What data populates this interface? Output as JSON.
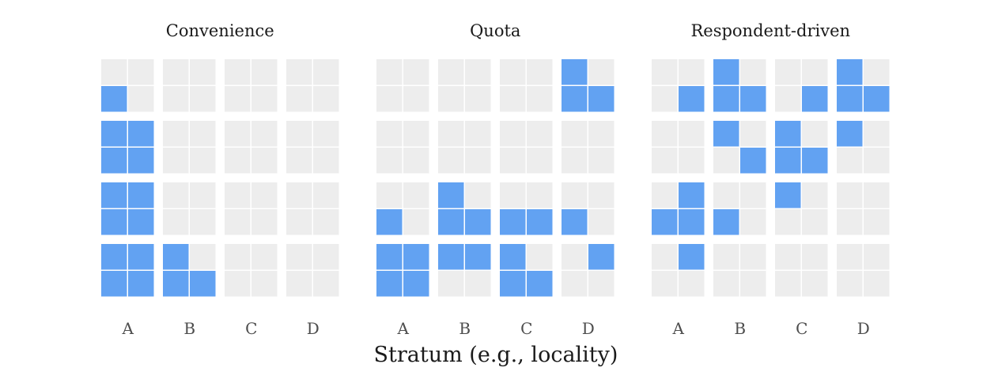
{
  "chart_data": {
    "type": "heatmap",
    "xlabel": "Stratum (e.g., locality)",
    "ylabel": "",
    "colors": {
      "sampled": "#62a2f2",
      "not_sampled": "#ededed"
    },
    "panels": [
      {
        "title": "Convenience",
        "strata": [
          "A",
          "B",
          "C",
          "D"
        ],
        "grid": [
          [
            0,
            0,
            0,
            0,
            0,
            0,
            0,
            0
          ],
          [
            1,
            0,
            0,
            0,
            0,
            0,
            0,
            0
          ],
          [
            1,
            1,
            0,
            0,
            0,
            0,
            0,
            0
          ],
          [
            1,
            1,
            0,
            0,
            0,
            0,
            0,
            0
          ],
          [
            1,
            1,
            0,
            0,
            0,
            0,
            0,
            0
          ],
          [
            1,
            1,
            0,
            0,
            0,
            0,
            0,
            0
          ],
          [
            1,
            1,
            1,
            0,
            0,
            0,
            0,
            0
          ],
          [
            1,
            1,
            1,
            1,
            0,
            0,
            0,
            0
          ]
        ]
      },
      {
        "title": "Quota",
        "strata": [
          "A",
          "B",
          "C",
          "D"
        ],
        "grid": [
          [
            0,
            0,
            0,
            0,
            0,
            0,
            1,
            0
          ],
          [
            0,
            0,
            0,
            0,
            0,
            0,
            1,
            1
          ],
          [
            0,
            0,
            0,
            0,
            0,
            0,
            0,
            0
          ],
          [
            0,
            0,
            0,
            0,
            0,
            0,
            0,
            0
          ],
          [
            0,
            0,
            1,
            0,
            0,
            0,
            0,
            0
          ],
          [
            1,
            0,
            1,
            1,
            1,
            1,
            1,
            0
          ],
          [
            1,
            1,
            1,
            1,
            1,
            0,
            0,
            1
          ],
          [
            1,
            1,
            0,
            0,
            1,
            1,
            0,
            0
          ]
        ]
      },
      {
        "title": "Respondent-driven",
        "strata": [
          "A",
          "B",
          "C",
          "D"
        ],
        "grid": [
          [
            0,
            0,
            1,
            0,
            0,
            0,
            1,
            0
          ],
          [
            0,
            1,
            1,
            1,
            0,
            1,
            1,
            1
          ],
          [
            0,
            0,
            1,
            0,
            1,
            0,
            1,
            0
          ],
          [
            0,
            0,
            0,
            1,
            1,
            1,
            0,
            0
          ],
          [
            0,
            1,
            0,
            0,
            1,
            0,
            0,
            0
          ],
          [
            1,
            1,
            1,
            0,
            0,
            0,
            0,
            0
          ],
          [
            0,
            1,
            0,
            0,
            0,
            0,
            0,
            0
          ],
          [
            0,
            0,
            0,
            0,
            0,
            0,
            0,
            0
          ]
        ]
      }
    ]
  }
}
